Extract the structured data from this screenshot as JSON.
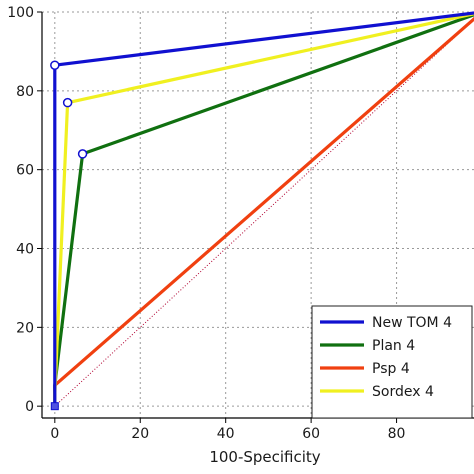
{
  "chart_data": {
    "type": "line",
    "title": "",
    "xlabel": "100-Specificity",
    "ylabel": "",
    "xlim": [
      -3,
      100
    ],
    "ylim": [
      -3,
      100
    ],
    "x_ticks": [
      0,
      20,
      40,
      60,
      80
    ],
    "y_ticks": [
      0,
      20,
      40,
      60,
      80,
      100
    ],
    "grid": true,
    "legend_position": "bottom-right",
    "diagonal_reference": {
      "from": [
        0,
        0
      ],
      "to": [
        100,
        100
      ],
      "color": "#b00030"
    },
    "series": [
      {
        "name": "New TOM 4",
        "color": "#1010d0",
        "points": [
          [
            0,
            0
          ],
          [
            0,
            86.5
          ],
          [
            100,
            100
          ]
        ]
      },
      {
        "name": "Plan 4",
        "color": "#107010",
        "points": [
          [
            0,
            0
          ],
          [
            0,
            5.3
          ],
          [
            6.5,
            64
          ],
          [
            100,
            100
          ]
        ]
      },
      {
        "name": "Psp 4",
        "color": "#f04010",
        "points": [
          [
            0,
            0
          ],
          [
            0,
            5.3
          ],
          [
            100,
            100
          ]
        ]
      },
      {
        "name": "Sordex 4",
        "color": "#f0f020",
        "points": [
          [
            0,
            0
          ],
          [
            0,
            3
          ],
          [
            3,
            77
          ],
          [
            100,
            100
          ]
        ]
      }
    ],
    "markers": [
      [
        0,
        86.5
      ],
      [
        3,
        77
      ],
      [
        6.5,
        64
      ],
      [
        0,
        0
      ]
    ]
  }
}
